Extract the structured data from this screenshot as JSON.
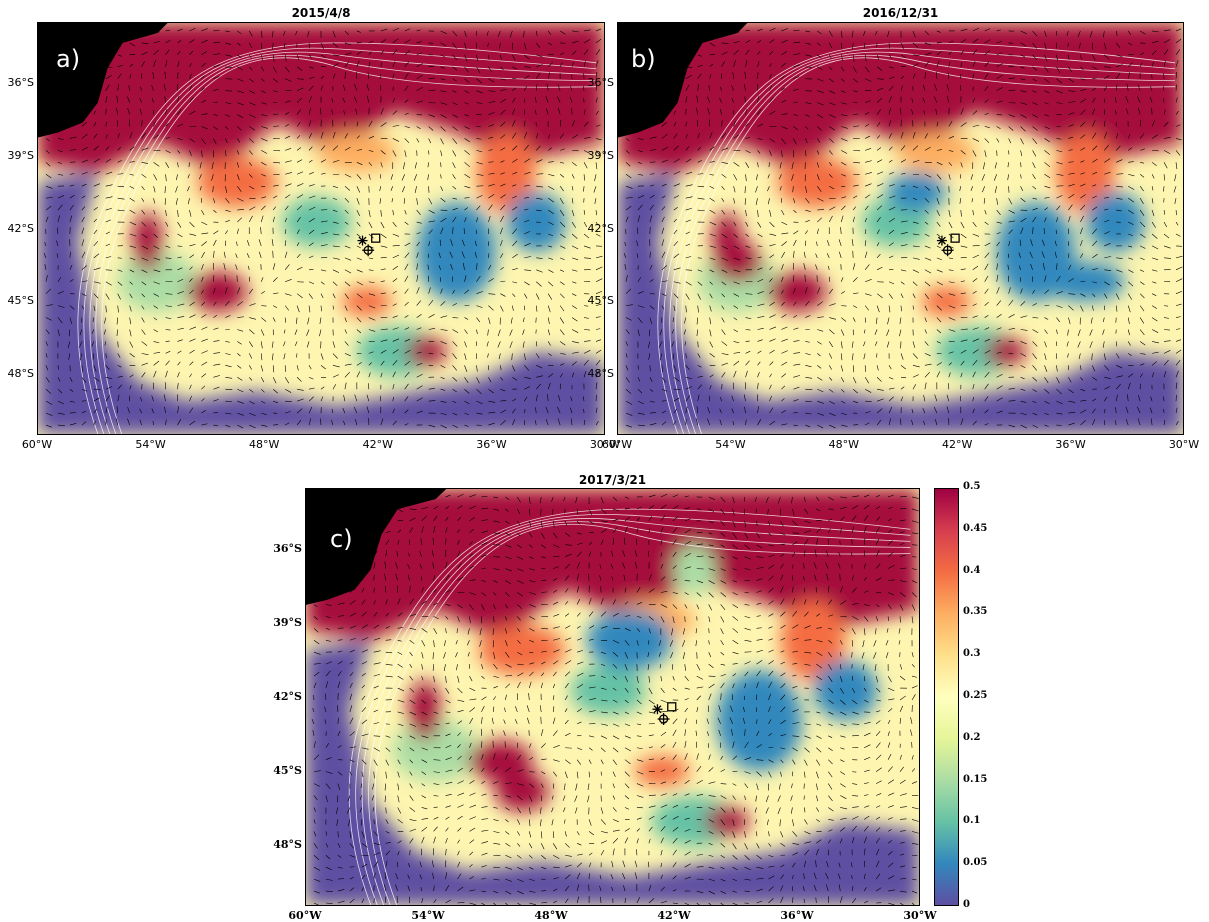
{
  "chart_data": [
    {
      "type": "heatmap",
      "panel": "a)",
      "title": "2015/4/8",
      "x_ticks": [
        "60°W",
        "54°W",
        "48°W",
        "42°W",
        "36°W",
        "30°W"
      ],
      "y_ticks": [
        "36°S",
        "39°S",
        "42°S",
        "45°S",
        "48°S"
      ],
      "xlim": [
        -60,
        -30
      ],
      "ylim": [
        -50.5,
        -33.5
      ],
      "markers": [
        "*",
        "□",
        "⊕"
      ]
    },
    {
      "type": "heatmap",
      "panel": "b)",
      "title": "2016/12/31",
      "x_ticks": [
        "60°W",
        "54°W",
        "48°W",
        "42°W",
        "36°W",
        "30°W"
      ],
      "y_ticks": [
        "36°S",
        "39°S",
        "42°S",
        "45°S",
        "48°S"
      ],
      "xlim": [
        -60,
        -30
      ],
      "ylim": [
        -50.5,
        -33.5
      ],
      "markers": [
        "*",
        "□",
        "⊕"
      ]
    },
    {
      "type": "heatmap",
      "panel": "c)",
      "title": "2017/3/21",
      "x_ticks": [
        "60°W",
        "54°W",
        "48°W",
        "42°W",
        "36°W",
        "30°W"
      ],
      "y_ticks": [
        "36°S",
        "39°S",
        "42°S",
        "45°S",
        "48°S"
      ],
      "xlim": [
        -60,
        -30
      ],
      "ylim": [
        -50.5,
        -33.5
      ],
      "markers": [
        "*",
        "□",
        "⊕"
      ],
      "colorbar": {
        "ticks": [
          "0.5",
          "0.45",
          "0.4",
          "0.35",
          "0.3",
          "0.25",
          "0.2",
          "0.15",
          "0.1",
          "0.05",
          "0"
        ],
        "range": [
          0,
          0.5
        ],
        "colormap": "Spectral_r"
      }
    }
  ],
  "colors": {
    "high": "#a50f3e",
    "mid_high": "#f46d43",
    "mid": "#ffffbf",
    "mid_low": "#66c2a5",
    "low": "#5e4fa2",
    "land": "#000000",
    "contour": "#ffffff"
  }
}
